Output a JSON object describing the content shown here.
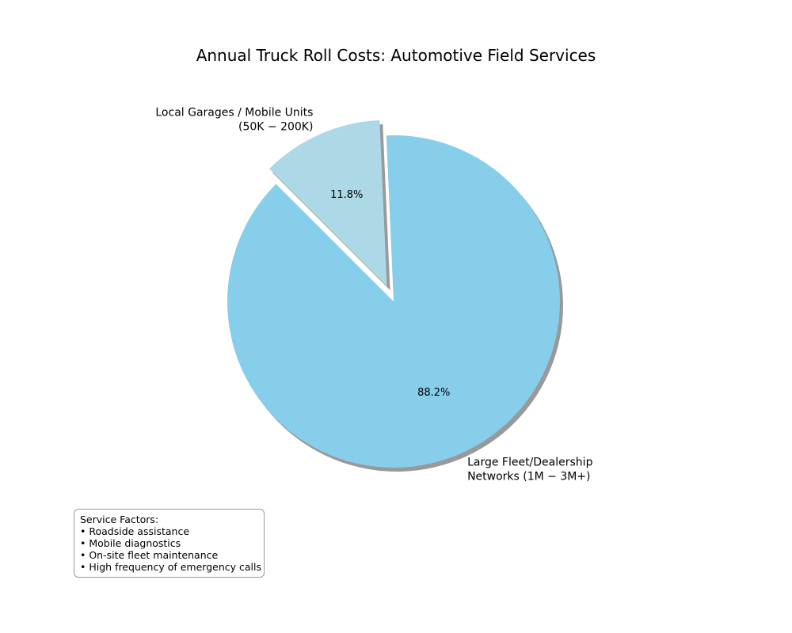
{
  "chart_data": {
    "type": "pie",
    "title": "Annual Truck Roll Costs: Automotive Field Services",
    "slices": [
      {
        "label_lines": [
          "Large Fleet/Dealership",
          "Networks (1M − 3M+)"
        ],
        "value": 88.2,
        "value_label": "88.2%",
        "color": "#87ceeb",
        "exploded": false
      },
      {
        "label_lines": [
          "Local Garages / Mobile Units",
          "(50K − 200K)"
        ],
        "value": 11.8,
        "value_label": "11.8%",
        "color": "#add8e6",
        "exploded": true
      }
    ],
    "shadow": true,
    "shadow_color": "#999999"
  },
  "annotation": {
    "heading": "Service Factors:",
    "items": [
      "• Roadside assistance",
      "• Mobile diagnostics",
      "• On-site fleet maintenance",
      "• High frequency of emergency calls"
    ]
  }
}
